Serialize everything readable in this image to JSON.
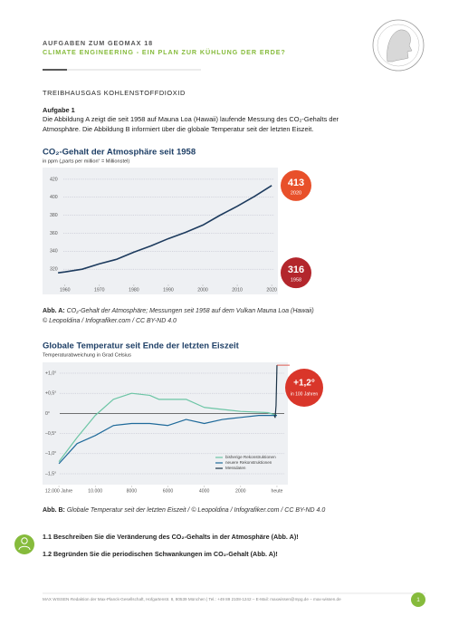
{
  "header": {
    "series_title": "AUFGABEN ZUM GEOMAX 18",
    "title": "CLIMATE ENGINEERING - EIN PLAN ZUR KÜHLUNG DER ERDE?"
  },
  "section": "TREIBHAUSGAS KOHLENSTOFFDIOXID",
  "task": {
    "title": "Aufgabe 1",
    "lines": [
      "Die Abbildung A zeigt die seit 1958 auf Mauna Loa (Hawaii) laufende Messung des CO₂-Gehalts der",
      "Atmosphäre. Die Abbildung B informiert über die globale Temperatur seit der letzten Eiszeit."
    ]
  },
  "chart_data": [
    {
      "type": "line",
      "title": "CO₂-Gehalt der Atmosphäre seit 1958",
      "subtitle": "in ppm („parts per million“ = Millionstel)",
      "x": [
        1958,
        1960,
        1965,
        1970,
        1975,
        1980,
        1985,
        1990,
        1995,
        2000,
        2005,
        2010,
        2015,
        2020
      ],
      "values": [
        316,
        317,
        320,
        326,
        331,
        339,
        346,
        354,
        361,
        369,
        380,
        390,
        401,
        413
      ],
      "color": "#1d3b5e",
      "xlim": [
        1953.5,
        2021.8
      ],
      "xticks": [
        1960,
        1970,
        1980,
        1990,
        2000,
        2010,
        2020
      ],
      "ylim": [
        292,
        433
      ],
      "yticks": [
        320,
        340,
        360,
        380,
        400,
        420
      ],
      "grid": true
    },
    {
      "type": "line",
      "title": "Globale Temperatur seit Ende der letzten Eiszeit",
      "subtitle": "Temperaturabweichung in Grad Celsius",
      "series": [
        {
          "name": "bisherige Rekonstruktionen",
          "color": "#6cc5a5",
          "x": [
            12000,
            11000,
            10000,
            9000,
            8000,
            7000,
            6500,
            5000,
            4000,
            2000,
            500,
            0
          ],
          "values": [
            -1.2,
            -0.6,
            -0.05,
            0.35,
            0.5,
            0.45,
            0.35,
            0.35,
            0.15,
            0.05,
            0.02,
            -0.05
          ]
        },
        {
          "name": "neuere Rekonstruktionen",
          "color": "#1f6a9a",
          "x": [
            12000,
            11000,
            10000,
            9000,
            8000,
            7000,
            6000,
            5000,
            4000,
            3000,
            2000,
            1000,
            0
          ],
          "values": [
            -1.25,
            -0.75,
            -0.55,
            -0.3,
            -0.25,
            -0.25,
            -0.3,
            -0.15,
            -0.25,
            -0.15,
            -0.1,
            -0.05,
            -0.05
          ]
        },
        {
          "name": "Messdaten",
          "color": "#1b3347",
          "x": [
            150,
            100,
            50,
            0
          ],
          "values": [
            -0.05,
            -0.1,
            0.2,
            1.2
          ]
        }
      ],
      "annotation": {
        "text": "+1,2°",
        "note": "in 100 Jahren"
      },
      "xlim": [
        12900,
        -600
      ],
      "xticks": [
        {
          "value": 12000,
          "label": "12.000 Jahre"
        },
        {
          "value": 10000,
          "label": "10.000"
        },
        8000,
        6000,
        4000,
        2000,
        {
          "value": 0,
          "label": "heute"
        }
      ],
      "ylim": [
        -1.77,
        1.27
      ],
      "yticks": [
        {
          "value": 1,
          "label": "+1,0°"
        },
        {
          "value": 0.5,
          "label": "+0,5°"
        },
        {
          "value": 0,
          "label": "0°"
        },
        {
          "value": -0.5,
          "label": "–0,5°"
        },
        {
          "value": -1,
          "label": "–1,0°"
        },
        {
          "value": -1.5,
          "label": "–1,5°"
        }
      ],
      "grid": true
    }
  ],
  "captions": [
    {
      "label": "Abb. A:",
      "lines": [
        "CO₂-Gehalt der Atmosphäre; Messungen seit 1958 auf dem Vulkan Mauna Loa (Hawaii)",
        "© Leopoldina / Infografiker.com / CC BY-ND 4.0"
      ]
    },
    {
      "label": "Abb. B:",
      "lines": [
        "Globale Temperatur seit der letzten Eiszeit / © Leopoldina / Infografiker.com / CC BY-ND 4.0"
      ]
    }
  ],
  "questions": [
    "1.1 Beschreiben Sie die Veränderung des CO₂-Gehalts in der Atmosphäre (Abb. A)!",
    "1.2 Begründen Sie die periodischen Schwankungen im CO₂-Gehalt (Abb. A)!"
  ],
  "footer": {
    "text": "MAX WISSEN·Redaktion der Max-Planck-Gesellschaft, Hofgartenstr. 8, 80539 München | Tel.: +49 89 2108-1242 – E-Mail: maxwissen@mpg.de – max-wissen.de",
    "page": "1"
  }
}
